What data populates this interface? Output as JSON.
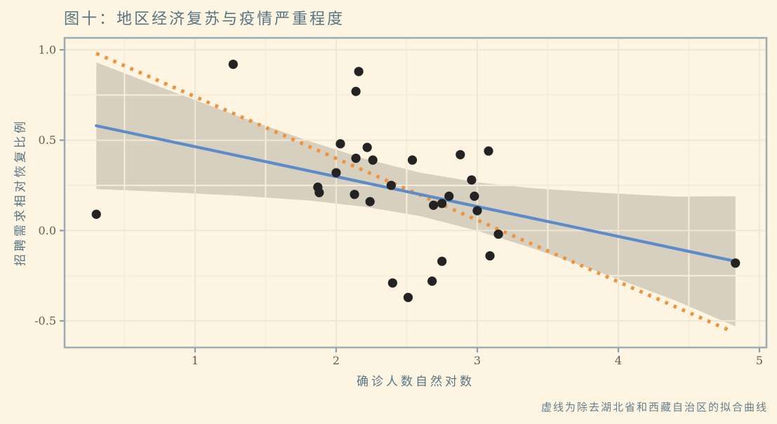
{
  "figure": {
    "title": "图十：地区经济复苏与疫情严重程度",
    "note": "虚线为除去湖北省和西藏自治区的拟合曲线"
  },
  "chart_data": {
    "type": "scatter",
    "title": "图十：地区经济复苏与疫情严重程度",
    "xlabel": "确诊人数自然对数",
    "ylabel": "招聘需求相对恢复比例",
    "x_range": [
      0.075,
      5.05
    ],
    "y_range": [
      -0.647,
      1.066
    ],
    "x_ticks": [
      1,
      2,
      3,
      4,
      5
    ],
    "x_tick_labels": [
      "1",
      "2",
      "3",
      "4",
      "5"
    ],
    "y_ticks": [
      1.0,
      0.5,
      0.0,
      -0.5
    ],
    "y_tick_labels": [
      "1.0",
      "0.5",
      "0.0",
      "-0.5"
    ],
    "x_minor_ticks": [
      0.5,
      1.5,
      2.5,
      3.5,
      4.5
    ],
    "y_minor_ticks": [
      0.75,
      0.25,
      -0.25
    ],
    "grid": true,
    "legend": "none",
    "points": [
      [
        0.3,
        0.09
      ],
      [
        1.27,
        0.92
      ],
      [
        2.16,
        0.88
      ],
      [
        2.14,
        0.77
      ],
      [
        2.03,
        0.48
      ],
      [
        2.22,
        0.46
      ],
      [
        2.14,
        0.4
      ],
      [
        2.26,
        0.39
      ],
      [
        2.54,
        0.39
      ],
      [
        2.88,
        0.42
      ],
      [
        3.08,
        0.44
      ],
      [
        2.0,
        0.32
      ],
      [
        1.87,
        0.24
      ],
      [
        1.88,
        0.21
      ],
      [
        2.13,
        0.2
      ],
      [
        2.24,
        0.16
      ],
      [
        2.39,
        0.25
      ],
      [
        2.96,
        0.28
      ],
      [
        2.8,
        0.19
      ],
      [
        2.98,
        0.19
      ],
      [
        2.69,
        0.14
      ],
      [
        2.75,
        0.15
      ],
      [
        3.0,
        0.11
      ],
      [
        3.15,
        -0.02
      ],
      [
        3.09,
        -0.14
      ],
      [
        2.75,
        -0.17
      ],
      [
        2.68,
        -0.28
      ],
      [
        2.4,
        -0.29
      ],
      [
        2.51,
        -0.37
      ],
      [
        4.83,
        -0.18
      ]
    ],
    "fit_solid_all_regions": {
      "x": [
        0.3,
        4.83
      ],
      "y": [
        0.58,
        -0.17
      ]
    },
    "fit_dashed_excl_hubei_tibet": {
      "x": [
        0.3,
        4.81
      ],
      "y": [
        0.98,
        -0.56
      ]
    },
    "confidence_band": [
      [
        0.3,
        0.23,
        0.93
      ],
      [
        0.8,
        0.213,
        0.781
      ],
      [
        1.3,
        0.193,
        0.635
      ],
      [
        1.8,
        0.167,
        0.497
      ],
      [
        2.2,
        0.132,
        0.398
      ],
      [
        2.59,
        0.081,
        0.321
      ],
      [
        3.0,
        -0.001,
        0.267
      ],
      [
        3.4,
        -0.1,
        0.234
      ],
      [
        3.9,
        -0.24,
        0.208
      ],
      [
        4.4,
        -0.386,
        0.188
      ],
      [
        4.83,
        -0.53,
        0.19
      ]
    ],
    "colors": {
      "background": "#fdf4e2",
      "band": "rgba(122,114,100,0.28)",
      "grid_major": "#efe7d3",
      "grid_minor": "#f5eeda",
      "fit_all": "#5c8cc7",
      "fit_excl": "#f0923c",
      "point": "#232323",
      "border": "#9badb4",
      "tick": "#8aa0a9",
      "tick_text": "#625e55",
      "label_text": "#587582",
      "note_text": "#64808c"
    }
  }
}
